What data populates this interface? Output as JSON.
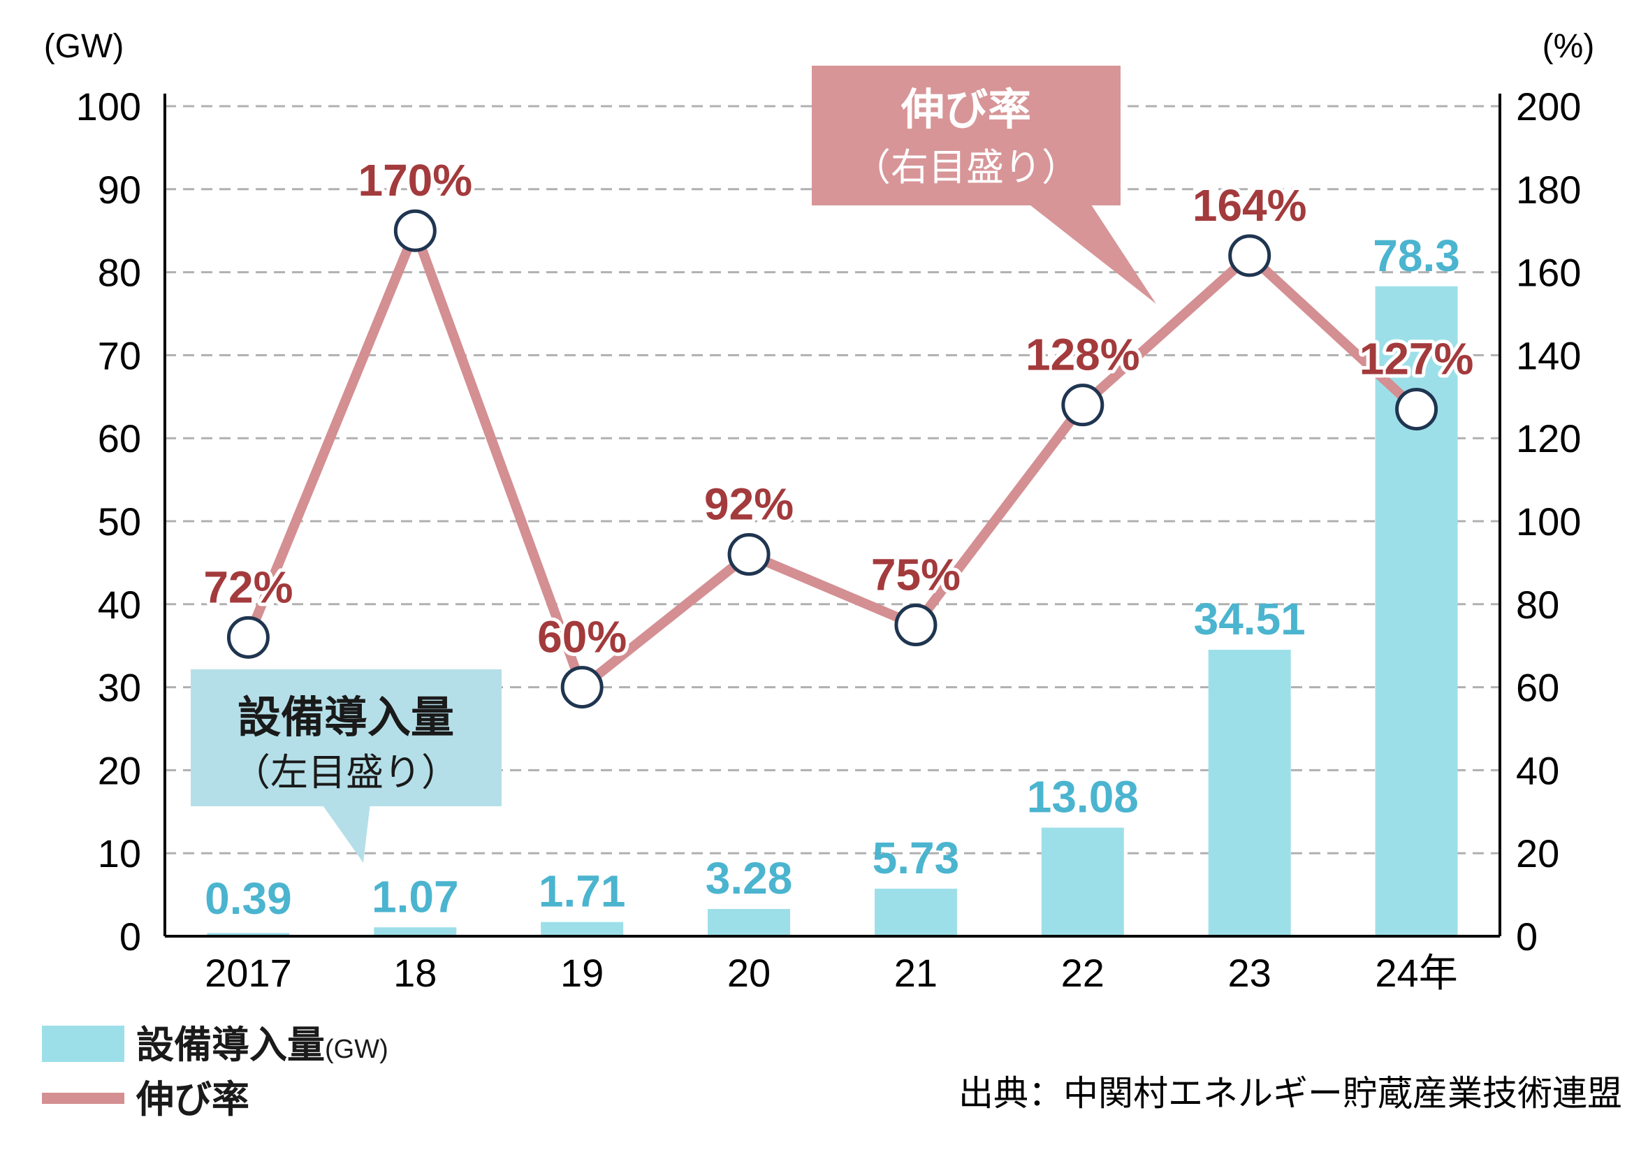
{
  "chart_data": {
    "type": "bar+line",
    "categories": [
      "2017",
      "18",
      "19",
      "20",
      "21",
      "22",
      "23",
      "24年"
    ],
    "series": [
      {
        "name": "設備導入量",
        "type": "bar",
        "axis": "left",
        "values": [
          0.39,
          1.07,
          1.71,
          3.28,
          5.73,
          13.08,
          34.51,
          78.3
        ],
        "labels": [
          "0.39",
          "1.07",
          "1.71",
          "3.28",
          "5.73",
          "13.08",
          "34.51",
          "78.3"
        ],
        "color": "#9ddfe9"
      },
      {
        "name": "伸び率",
        "type": "line",
        "axis": "right",
        "values": [
          72,
          170,
          60,
          92,
          75,
          128,
          164,
          127
        ],
        "labels": [
          "72%",
          "170%",
          "60%",
          "92%",
          "75%",
          "128%",
          "164%",
          "127%"
        ],
        "color": "#d48f92"
      }
    ],
    "y_left": {
      "unit": "(GW)",
      "ylim": [
        0,
        100
      ],
      "ticks": [
        "0",
        "10",
        "20",
        "30",
        "40",
        "50",
        "60",
        "70",
        "80",
        "90",
        "100"
      ]
    },
    "y_right": {
      "unit": "(%)",
      "ylim": [
        0,
        200
      ],
      "ticks": [
        "0",
        "20",
        "40",
        "60",
        "80",
        "100",
        "120",
        "140",
        "160",
        "180",
        "200"
      ]
    },
    "grid": true,
    "callouts": {
      "rate": {
        "title": "伸び率",
        "sub": "（右目盛り）",
        "color": "#d79597"
      },
      "volume": {
        "title": "設備導入量",
        "sub": "（左目盛り）",
        "color": "#b5dfe8"
      }
    },
    "legend": {
      "position": "bottom-left",
      "items": [
        {
          "label": "設備導入量",
          "unit": "(GW)",
          "kind": "bar"
        },
        {
          "label": "伸び率",
          "unit": "",
          "kind": "line"
        }
      ]
    },
    "source": "出典：中関村エネルギー貯蔵産業技術連盟",
    "colors": {
      "bar": "#9ddfe9",
      "bar_label": "#4bb4cf",
      "line": "#d48f92",
      "line_label": "#a33a3c",
      "marker_stroke": "#1f3550",
      "grid": "#b0b0b0"
    }
  }
}
